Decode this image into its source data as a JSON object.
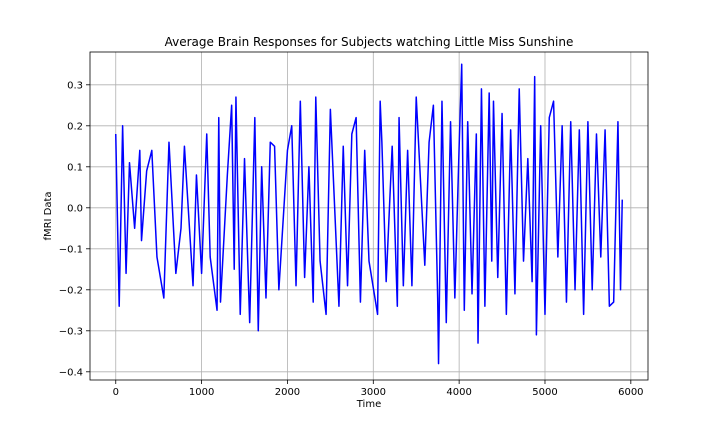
{
  "chart_data": {
    "type": "line",
    "title": "Average Brain Responses for Subjects watching Little Miss Sunshine",
    "xlabel": "Time",
    "ylabel": "fMRI Data",
    "xlim": [
      -300,
      6200
    ],
    "ylim": [
      -0.42,
      0.38
    ],
    "grid": true,
    "line_color": "#0000ff",
    "x_ticks": [
      {
        "value": 0,
        "label": "0"
      },
      {
        "value": 1000,
        "label": "1000"
      },
      {
        "value": 2000,
        "label": "2000"
      },
      {
        "value": 3000,
        "label": "3000"
      },
      {
        "value": 4000,
        "label": "4000"
      },
      {
        "value": 5000,
        "label": "5000"
      },
      {
        "value": 6000,
        "label": "6000"
      }
    ],
    "y_ticks": [
      {
        "value": -0.4,
        "label": "−0.4"
      },
      {
        "value": -0.3,
        "label": "−0.3"
      },
      {
        "value": -0.2,
        "label": "−0.2"
      },
      {
        "value": -0.1,
        "label": "−0.1"
      },
      {
        "value": 0.0,
        "label": "0.0"
      },
      {
        "value": 0.1,
        "label": "0.1"
      },
      {
        "value": 0.2,
        "label": "0.2"
      },
      {
        "value": 0.3,
        "label": "0.3"
      }
    ],
    "series": [
      {
        "x": [
          0,
          40,
          80,
          120,
          160,
          220,
          280,
          300,
          360,
          420,
          480,
          560,
          620,
          700,
          760,
          800,
          900,
          940,
          1000,
          1060,
          1100,
          1180,
          1200,
          1220,
          1300,
          1350,
          1380,
          1400,
          1450,
          1500,
          1560,
          1620,
          1660,
          1700,
          1750,
          1800,
          1850,
          1900,
          2000,
          2050,
          2100,
          2150,
          2200,
          2250,
          2300,
          2330,
          2380,
          2450,
          2500,
          2600,
          2650,
          2700,
          2750,
          2800,
          2850,
          2900,
          2950,
          3050,
          3080,
          3100,
          3150,
          3220,
          3280,
          3300,
          3350,
          3400,
          3450,
          3500,
          3600,
          3650,
          3700,
          3750,
          3760,
          3800,
          3850,
          3900,
          3950,
          4000,
          4030,
          4060,
          4100,
          4150,
          4200,
          4220,
          4260,
          4300,
          4350,
          4380,
          4400,
          4450,
          4500,
          4550,
          4600,
          4650,
          4700,
          4750,
          4800,
          4850,
          4880,
          4900,
          4950,
          5000,
          5050,
          5100,
          5150,
          5200,
          5250,
          5300,
          5350,
          5400,
          5450,
          5500,
          5550,
          5600,
          5650,
          5700,
          5750,
          5800,
          5850,
          5880,
          5900
        ],
        "y": [
          0.18,
          -0.24,
          0.2,
          -0.16,
          0.11,
          -0.05,
          0.14,
          -0.08,
          0.09,
          0.14,
          -0.12,
          -0.22,
          0.16,
          -0.16,
          -0.05,
          0.15,
          -0.19,
          0.08,
          -0.16,
          0.18,
          -0.12,
          -0.25,
          0.22,
          -0.23,
          0.08,
          0.25,
          -0.15,
          0.27,
          -0.26,
          0.12,
          -0.28,
          0.22,
          -0.3,
          0.1,
          -0.22,
          0.16,
          0.15,
          -0.2,
          0.14,
          0.2,
          -0.19,
          0.26,
          -0.17,
          0.1,
          -0.23,
          0.27,
          -0.13,
          -0.26,
          0.24,
          -0.24,
          0.15,
          -0.19,
          0.18,
          0.22,
          -0.23,
          0.14,
          -0.13,
          -0.26,
          0.26,
          0.16,
          -0.18,
          0.15,
          -0.24,
          0.22,
          -0.19,
          0.14,
          -0.19,
          0.27,
          -0.14,
          0.16,
          0.25,
          -0.22,
          -0.38,
          0.26,
          -0.28,
          0.21,
          -0.22,
          0.15,
          0.35,
          -0.25,
          0.21,
          -0.21,
          0.18,
          -0.33,
          0.29,
          -0.24,
          0.28,
          -0.13,
          0.26,
          -0.17,
          0.23,
          -0.26,
          0.19,
          -0.21,
          0.29,
          -0.13,
          0.12,
          -0.18,
          0.32,
          -0.31,
          0.2,
          -0.26,
          0.22,
          0.26,
          -0.12,
          0.2,
          -0.23,
          0.21,
          -0.2,
          0.19,
          -0.26,
          0.21,
          -0.2,
          0.18,
          -0.12,
          0.19,
          -0.24,
          -0.23,
          0.21,
          -0.2,
          0.02
        ]
      }
    ]
  }
}
